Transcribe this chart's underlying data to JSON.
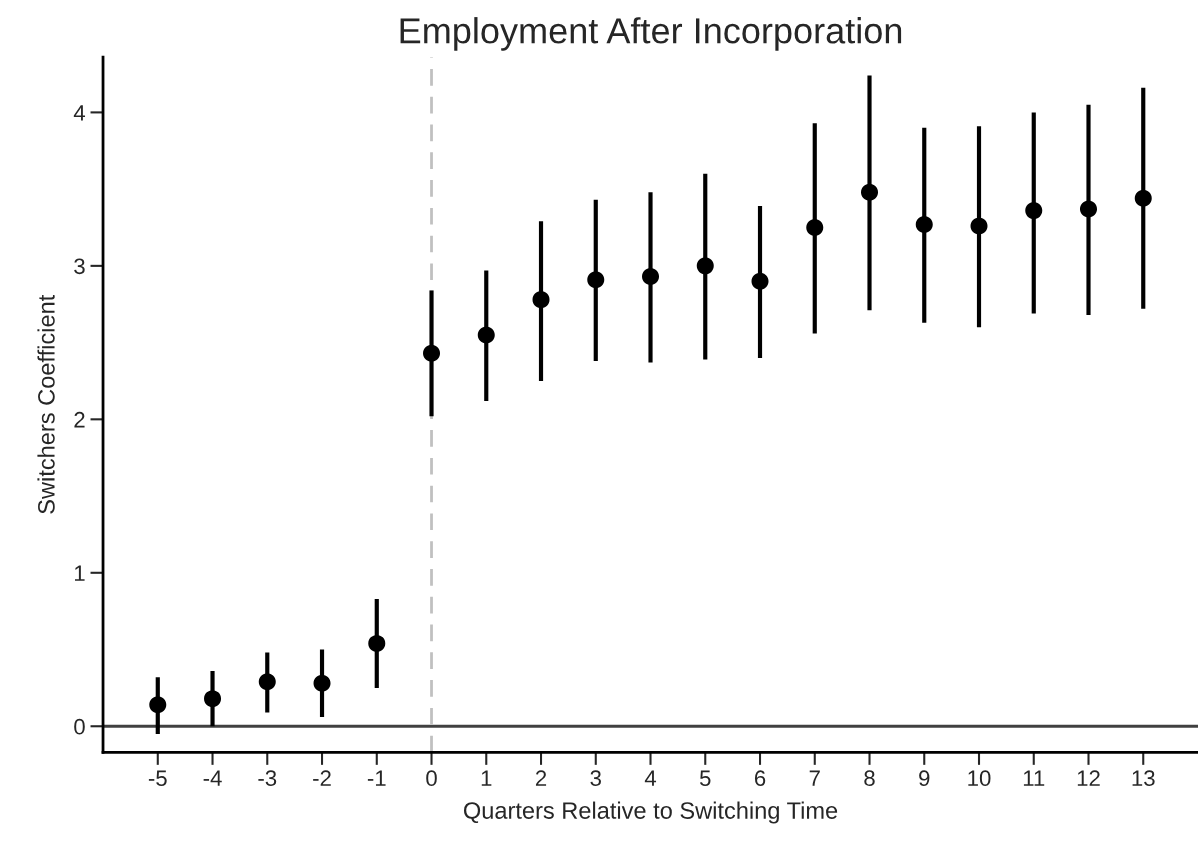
{
  "chart_data": {
    "type": "scatter",
    "title": "Employment After Incorporation",
    "xlabel": "Quarters Relative to Switching Time",
    "ylabel": "Switchers Coefficient",
    "x": [
      -5,
      -4,
      -3,
      -2,
      -1,
      0,
      1,
      2,
      3,
      4,
      5,
      6,
      7,
      8,
      9,
      10,
      11,
      12,
      13
    ],
    "series": [
      {
        "color": "#000000",
        "values": [
          0.14,
          0.18,
          0.29,
          0.28,
          0.54,
          2.43,
          2.55,
          2.78,
          2.91,
          2.93,
          3.0,
          2.9,
          3.25,
          3.48,
          3.27,
          3.26,
          3.36,
          3.37,
          3.44
        ],
        "errors": [
          [
            -0.05,
            0.32
          ],
          [
            0.0,
            0.36
          ],
          [
            0.09,
            0.48
          ],
          [
            0.06,
            0.5
          ],
          [
            0.25,
            0.83
          ],
          [
            2.02,
            2.84
          ],
          [
            2.12,
            2.97
          ],
          [
            2.25,
            3.29
          ],
          [
            2.38,
            3.43
          ],
          [
            2.37,
            3.48
          ],
          [
            2.39,
            3.6
          ],
          [
            2.4,
            3.39
          ],
          [
            2.56,
            3.93
          ],
          [
            2.71,
            4.24
          ],
          [
            2.63,
            3.9
          ],
          [
            2.6,
            3.91
          ],
          [
            2.69,
            4.0
          ],
          [
            2.68,
            4.05
          ],
          [
            2.72,
            4.16
          ]
        ]
      }
    ],
    "xlim": [
      -6,
      14
    ],
    "ylim": [
      -0.17,
      4.36
    ],
    "xticks": [
      -5,
      -4,
      -3,
      -2,
      -1,
      0,
      1,
      2,
      3,
      4,
      5,
      6,
      7,
      8,
      9,
      10,
      11,
      12,
      13
    ],
    "yticks": [
      0,
      1,
      2,
      3,
      4
    ],
    "ref_lines": [
      {
        "axis": "y",
        "value": 0,
        "color": "#404040",
        "line_style": "solid"
      },
      {
        "axis": "x",
        "value": 0,
        "color": "#c0c0c0",
        "line_style": "dashed"
      }
    ],
    "marker": "circle",
    "grid": false,
    "legend": false
  }
}
